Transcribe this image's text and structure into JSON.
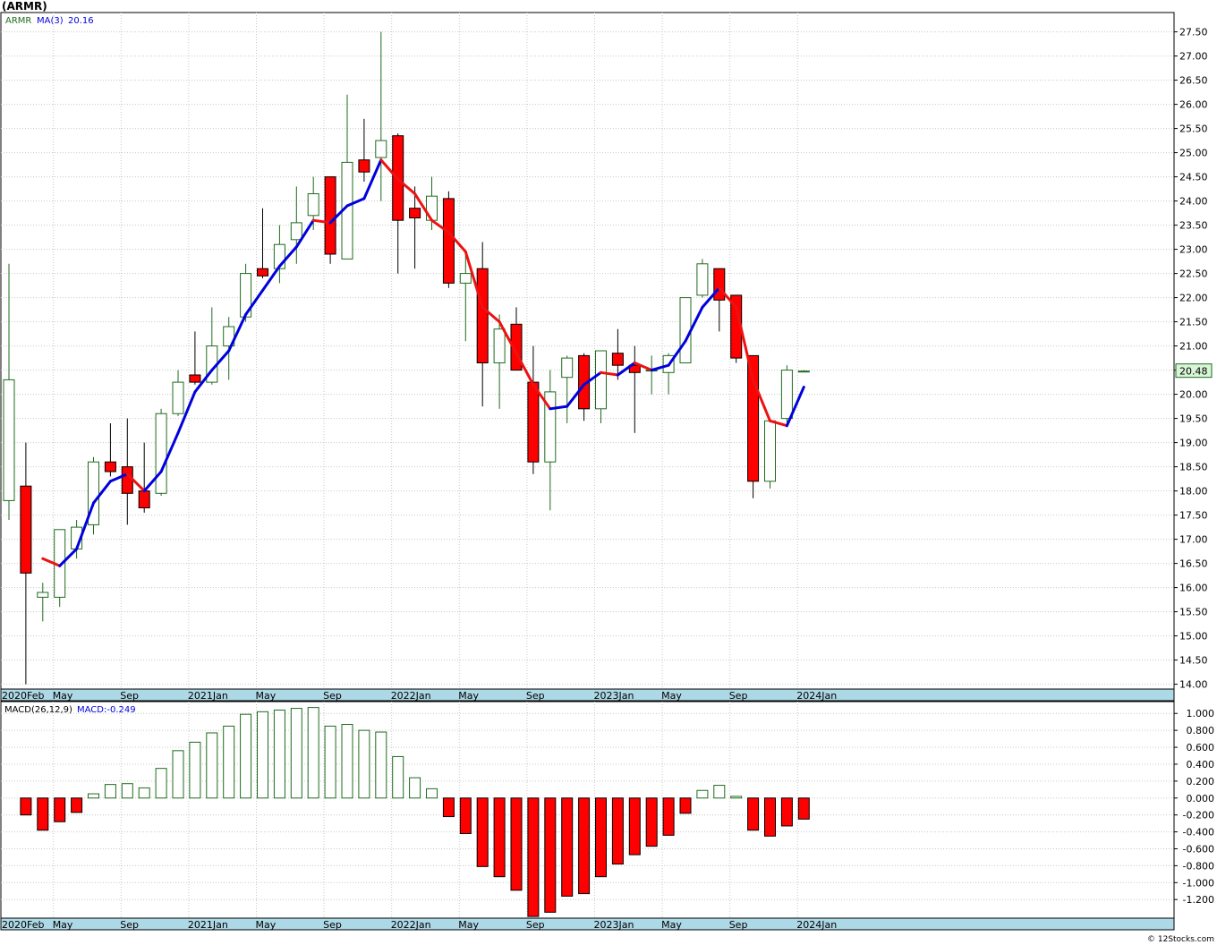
{
  "title": "(ARMR)",
  "credit": "© 12Stocks.com",
  "colors": {
    "up": "#1e6b1e",
    "down": "#ff0000",
    "ma_up": "#0000dd",
    "ma_down": "#ee1111",
    "axis_band": "#add8e6",
    "grid": "#c8c8c8"
  },
  "chart_data": [
    {
      "type": "candlestick",
      "legend": {
        "symbol": "ARMR",
        "ma_label": "MA(3)",
        "ma_value": "20.16"
      },
      "last_price_label": "20.48",
      "ylim": [
        13.9,
        27.9
      ],
      "y_ticks": [
        "14.00",
        "14.50",
        "15.00",
        "15.50",
        "16.00",
        "16.50",
        "17.00",
        "17.50",
        "18.00",
        "18.50",
        "19.00",
        "19.50",
        "20.00",
        "20.50",
        "21.00",
        "21.50",
        "22.00",
        "22.50",
        "23.00",
        "23.50",
        "24.00",
        "24.50",
        "25.00",
        "25.50",
        "26.00",
        "26.50",
        "27.00",
        "27.50"
      ],
      "x_labels": [
        {
          "label": "2020Feb",
          "i": 0
        },
        {
          "label": "May",
          "i": 3
        },
        {
          "label": "Sep",
          "i": 7
        },
        {
          "label": "2021Jan",
          "i": 11
        },
        {
          "label": "May",
          "i": 15
        },
        {
          "label": "Sep",
          "i": 19
        },
        {
          "label": "2022Jan",
          "i": 23
        },
        {
          "label": "May",
          "i": 27
        },
        {
          "label": "Sep",
          "i": 31
        },
        {
          "label": "2023Jan",
          "i": 35
        },
        {
          "label": "May",
          "i": 39
        },
        {
          "label": "Sep",
          "i": 43
        },
        {
          "label": "2024Jan",
          "i": 47
        }
      ],
      "candles": [
        {
          "o": 17.8,
          "h": 22.7,
          "l": 17.4,
          "c": 20.3
        },
        {
          "o": 18.1,
          "h": 19.0,
          "l": 14.0,
          "c": 16.3
        },
        {
          "o": 15.8,
          "h": 16.1,
          "l": 15.3,
          "c": 15.9
        },
        {
          "o": 15.8,
          "h": 17.2,
          "l": 15.6,
          "c": 17.2
        },
        {
          "o": 16.8,
          "h": 17.4,
          "l": 16.6,
          "c": 17.25
        },
        {
          "o": 17.3,
          "h": 18.7,
          "l": 17.1,
          "c": 18.6
        },
        {
          "o": 18.6,
          "h": 19.4,
          "l": 18.3,
          "c": 18.4
        },
        {
          "o": 18.5,
          "h": 19.5,
          "l": 17.3,
          "c": 17.95
        },
        {
          "o": 18.0,
          "h": 19.0,
          "l": 17.55,
          "c": 17.65
        },
        {
          "o": 17.95,
          "h": 19.7,
          "l": 17.9,
          "c": 19.6
        },
        {
          "o": 19.6,
          "h": 20.5,
          "l": 19.55,
          "c": 20.25
        },
        {
          "o": 20.4,
          "h": 21.3,
          "l": 20.2,
          "c": 20.25
        },
        {
          "o": 20.25,
          "h": 21.8,
          "l": 20.2,
          "c": 21.0
        },
        {
          "o": 21.0,
          "h": 21.6,
          "l": 20.3,
          "c": 21.4
        },
        {
          "o": 21.6,
          "h": 22.7,
          "l": 21.5,
          "c": 22.5
        },
        {
          "o": 22.6,
          "h": 23.85,
          "l": 22.4,
          "c": 22.45
        },
        {
          "o": 22.6,
          "h": 23.5,
          "l": 22.3,
          "c": 23.1
        },
        {
          "o": 23.2,
          "h": 24.3,
          "l": 22.7,
          "c": 23.55
        },
        {
          "o": 23.7,
          "h": 24.5,
          "l": 23.4,
          "c": 24.15
        },
        {
          "o": 24.5,
          "h": 24.5,
          "l": 22.7,
          "c": 22.9
        },
        {
          "o": 22.8,
          "h": 26.2,
          "l": 22.8,
          "c": 24.8
        },
        {
          "o": 24.85,
          "h": 25.7,
          "l": 24.4,
          "c": 24.6
        },
        {
          "o": 24.9,
          "h": 27.5,
          "l": 24.0,
          "c": 25.25
        },
        {
          "o": 25.35,
          "h": 25.4,
          "l": 22.5,
          "c": 23.6
        },
        {
          "o": 23.85,
          "h": 24.3,
          "l": 22.6,
          "c": 23.65
        },
        {
          "o": 23.6,
          "h": 24.5,
          "l": 23.4,
          "c": 24.1
        },
        {
          "o": 24.05,
          "h": 24.2,
          "l": 22.2,
          "c": 22.3
        },
        {
          "o": 22.3,
          "h": 22.9,
          "l": 21.1,
          "c": 22.5
        },
        {
          "o": 22.6,
          "h": 23.15,
          "l": 19.75,
          "c": 20.65
        },
        {
          "o": 20.65,
          "h": 21.65,
          "l": 19.7,
          "c": 21.35
        },
        {
          "o": 21.45,
          "h": 21.8,
          "l": 20.5,
          "c": 20.5
        },
        {
          "o": 20.25,
          "h": 21.0,
          "l": 18.35,
          "c": 18.6
        },
        {
          "o": 18.6,
          "h": 20.5,
          "l": 17.6,
          "c": 20.05
        },
        {
          "o": 20.35,
          "h": 20.8,
          "l": 19.4,
          "c": 20.75
        },
        {
          "o": 20.8,
          "h": 20.85,
          "l": 19.45,
          "c": 19.7
        },
        {
          "o": 19.7,
          "h": 20.9,
          "l": 19.4,
          "c": 20.9
        },
        {
          "o": 20.85,
          "h": 21.35,
          "l": 20.3,
          "c": 20.6
        },
        {
          "o": 20.6,
          "h": 21.0,
          "l": 19.2,
          "c": 20.45
        },
        {
          "o": 20.5,
          "h": 20.8,
          "l": 20.0,
          "c": 20.5
        },
        {
          "o": 20.45,
          "h": 20.85,
          "l": 20.0,
          "c": 20.8
        },
        {
          "o": 20.65,
          "h": 22.0,
          "l": 20.65,
          "c": 22.0
        },
        {
          "o": 22.05,
          "h": 22.8,
          "l": 22.0,
          "c": 22.7
        },
        {
          "o": 22.6,
          "h": 22.6,
          "l": 21.3,
          "c": 21.95
        },
        {
          "o": 22.05,
          "h": 22.05,
          "l": 20.65,
          "c": 20.75
        },
        {
          "o": 20.8,
          "h": 20.8,
          "l": 17.85,
          "c": 18.2
        },
        {
          "o": 18.2,
          "h": 19.5,
          "l": 18.05,
          "c": 19.45
        },
        {
          "o": 19.5,
          "h": 20.6,
          "l": 19.4,
          "c": 20.5
        },
        {
          "o": 20.48,
          "h": 20.5,
          "l": 20.46,
          "c": 20.48
        }
      ],
      "ma3": [
        null,
        null,
        16.6,
        16.45,
        16.8,
        17.75,
        18.2,
        18.35,
        18.0,
        18.4,
        19.2,
        20.05,
        20.5,
        20.9,
        21.65,
        22.15,
        22.65,
        23.05,
        23.6,
        23.55,
        23.9,
        24.05,
        24.85,
        24.45,
        24.15,
        23.6,
        23.35,
        22.95,
        21.8,
        21.5,
        20.85,
        20.2,
        19.7,
        19.75,
        20.2,
        20.45,
        20.4,
        20.65,
        20.5,
        20.6,
        21.1,
        21.8,
        22.2,
        21.8,
        20.3,
        19.45,
        19.35,
        20.15
      ]
    },
    {
      "type": "bar",
      "legend": {
        "name": "MACD(26,12,9)",
        "value_label": "MACD:-0.249"
      },
      "ylim": [
        -1.42,
        1.14
      ],
      "y_ticks": [
        "-1.200",
        "-1.000",
        "-0.800",
        "-0.600",
        "-0.400",
        "-0.200",
        "0.000",
        "0.200",
        "0.400",
        "0.600",
        "0.800",
        "1.000"
      ],
      "x_labels": [
        {
          "label": "2020Feb",
          "i": 0
        },
        {
          "label": "May",
          "i": 3
        },
        {
          "label": "Sep",
          "i": 7
        },
        {
          "label": "2021Jan",
          "i": 11
        },
        {
          "label": "May",
          "i": 15
        },
        {
          "label": "Sep",
          "i": 19
        },
        {
          "label": "2022Jan",
          "i": 23
        },
        {
          "label": "May",
          "i": 27
        },
        {
          "label": "Sep",
          "i": 31
        },
        {
          "label": "2023Jan",
          "i": 35
        },
        {
          "label": "May",
          "i": 39
        },
        {
          "label": "Sep",
          "i": 43
        },
        {
          "label": "2024Jan",
          "i": 47
        }
      ],
      "values": [
        null,
        -0.2,
        -0.38,
        -0.28,
        -0.17,
        0.05,
        0.16,
        0.17,
        0.12,
        0.35,
        0.56,
        0.66,
        0.77,
        0.85,
        0.99,
        1.02,
        1.04,
        1.06,
        1.07,
        0.85,
        0.87,
        0.8,
        0.78,
        0.49,
        0.24,
        0.11,
        -0.22,
        -0.42,
        -0.81,
        -0.93,
        -1.09,
        -1.4,
        -1.35,
        -1.16,
        -1.13,
        -0.93,
        -0.78,
        -0.67,
        -0.57,
        -0.44,
        -0.18,
        0.09,
        0.15,
        0.02,
        -0.38,
        -0.45,
        -0.33,
        -0.249
      ]
    }
  ]
}
